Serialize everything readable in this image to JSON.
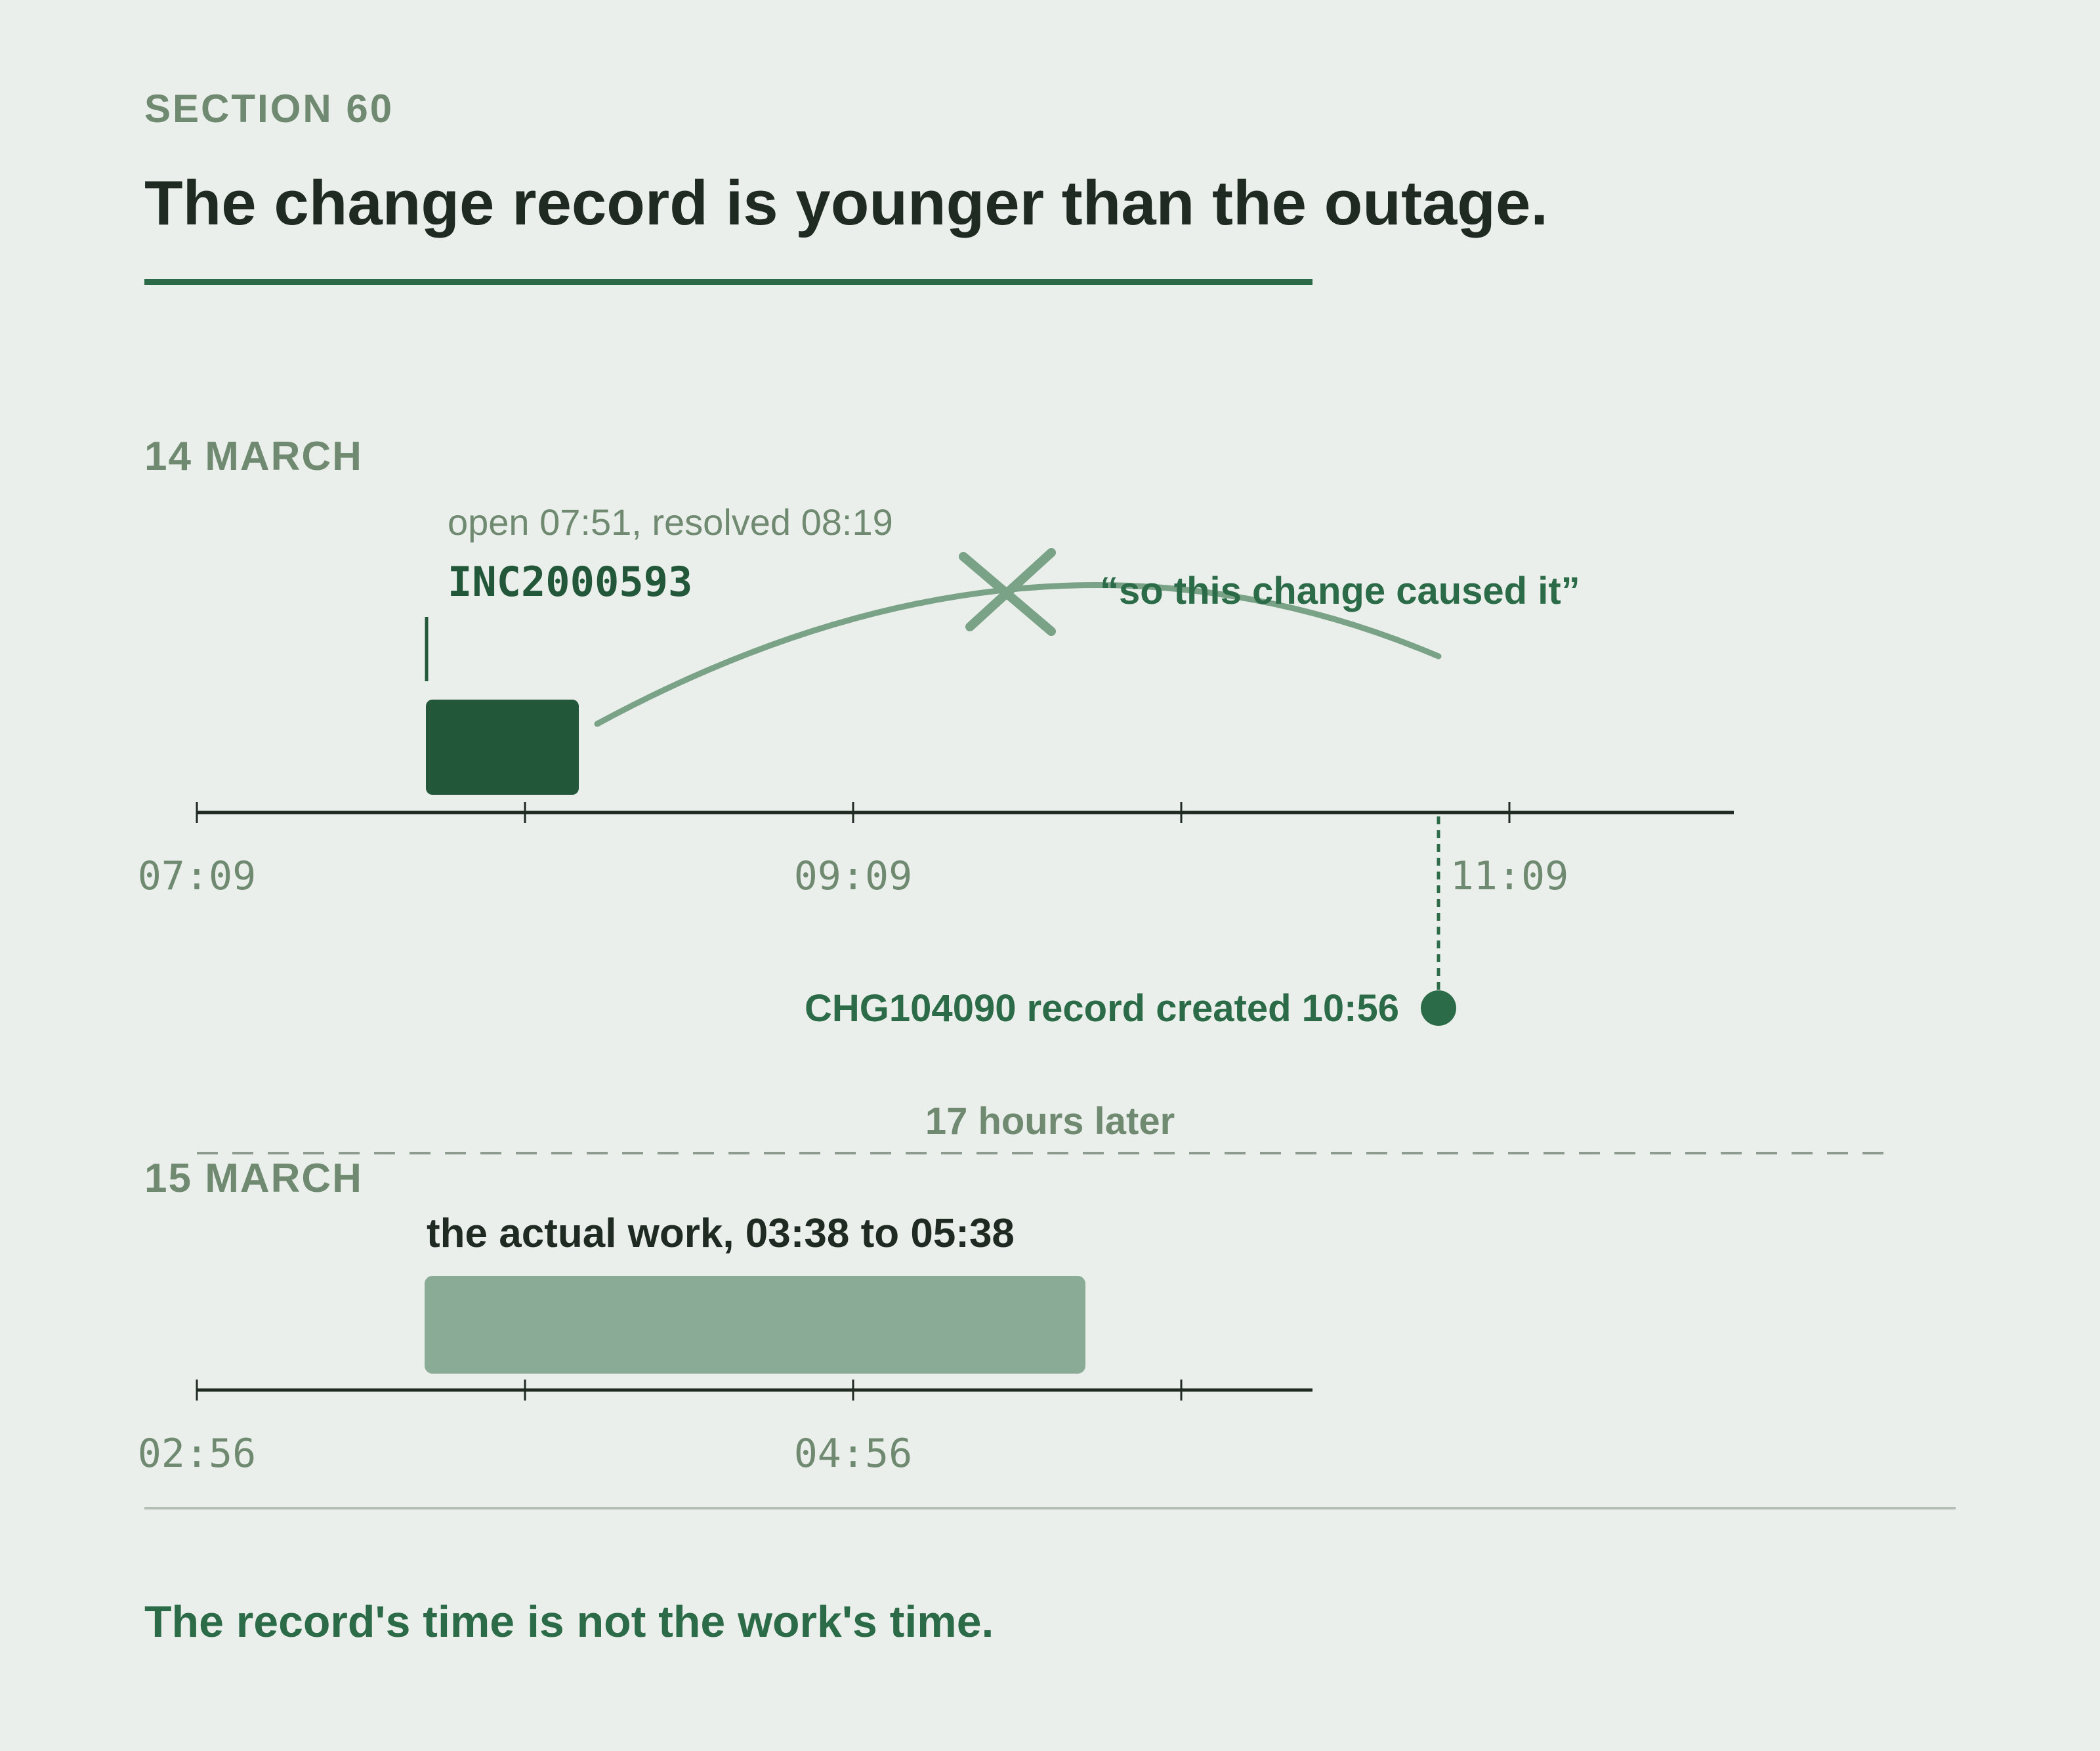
{
  "header": {
    "section": "SECTION 60",
    "title": "The change record is younger than the outage."
  },
  "day1": {
    "label": "14 MARCH",
    "ticks": [
      "07:09",
      "09:09",
      "11:09"
    ],
    "incident": {
      "times": "open 07:51, resolved 08:19",
      "id": "INC2000593"
    },
    "claim": "“so this change caused it”",
    "change_created": "CHG104090 record created 10:56"
  },
  "gap_label": "17 hours later",
  "day2": {
    "label": "15 MARCH",
    "work_label": "the actual work, 03:38 to 05:38",
    "ticks": [
      "02:56",
      "04:56"
    ]
  },
  "footer": {
    "conclusion": "The record's time is not the work's time."
  },
  "colors": {
    "background": "#ebefeb",
    "dark_green": "#22573a",
    "accent_green": "#2c6b47",
    "muted_green": "#6f8a70",
    "light_green": "#8aab96",
    "curve_green": "#7aa287",
    "ink": "#1f2a22"
  }
}
